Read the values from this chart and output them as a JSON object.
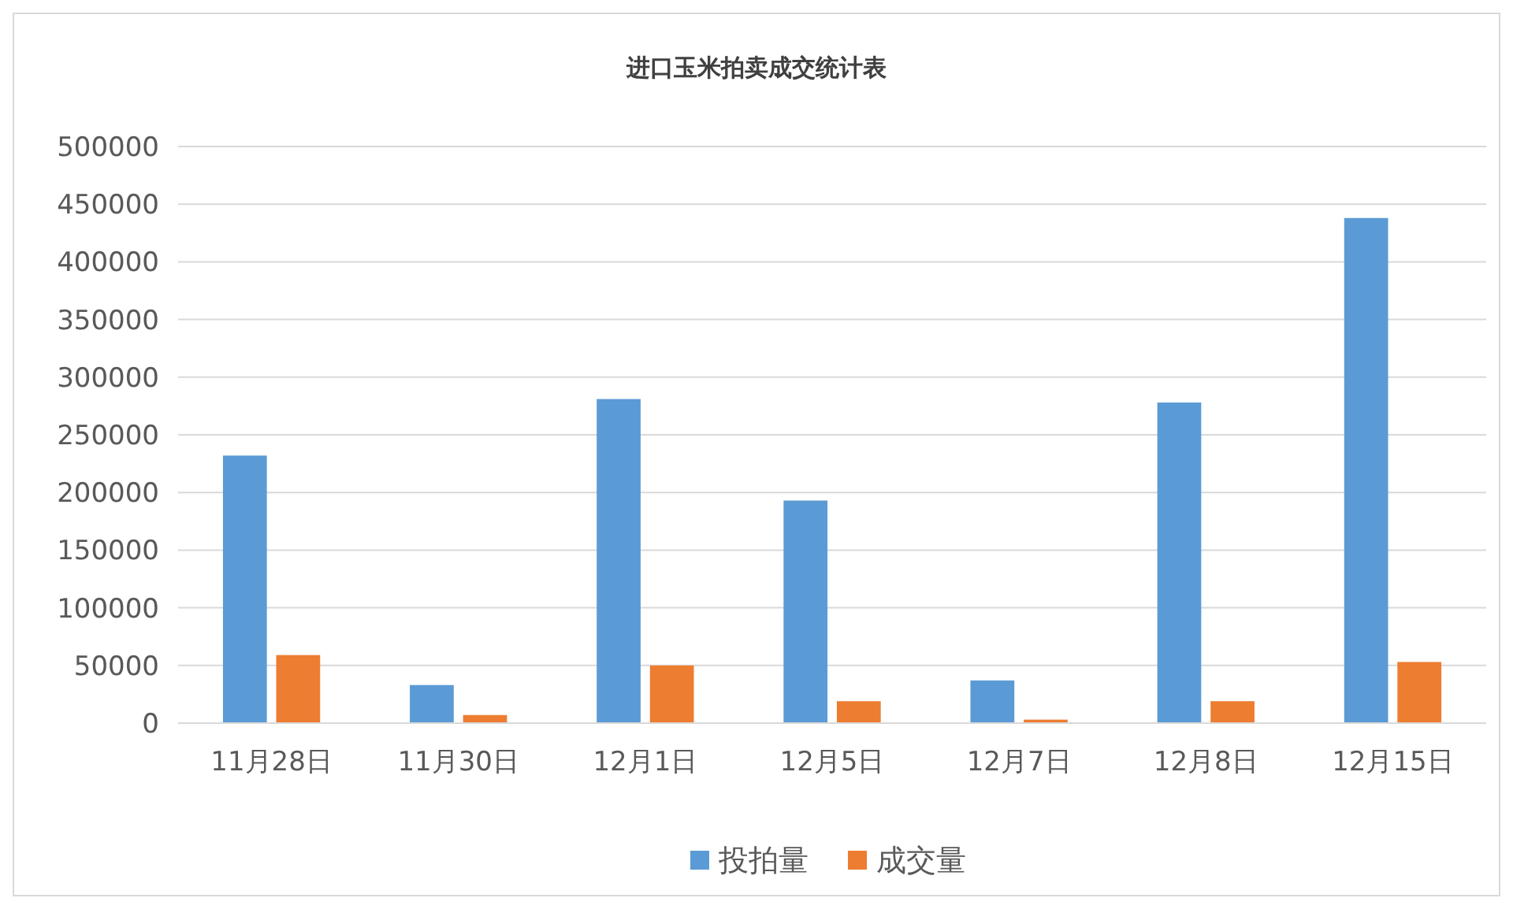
{
  "chart_data": {
    "type": "bar",
    "title": "进口玉米拍卖成交统计表",
    "categories": [
      "11月28日",
      "11月30日",
      "12月1日",
      "12月5日",
      "12月7日",
      "12月8日",
      "12月15日"
    ],
    "series": [
      {
        "name": "投拍量",
        "color": "#5b9bd5",
        "values": [
          232000,
          33000,
          281000,
          193000,
          37000,
          278000,
          438000
        ]
      },
      {
        "name": "成交量",
        "color": "#ed7d31",
        "values": [
          59000,
          7000,
          50000,
          19000,
          3000,
          19000,
          53000
        ]
      }
    ],
    "ylim": [
      0,
      500000
    ],
    "yticks": [
      0,
      50000,
      100000,
      150000,
      200000,
      250000,
      300000,
      350000,
      400000,
      450000,
      500000
    ],
    "grid": "y",
    "legend": "bottom"
  }
}
